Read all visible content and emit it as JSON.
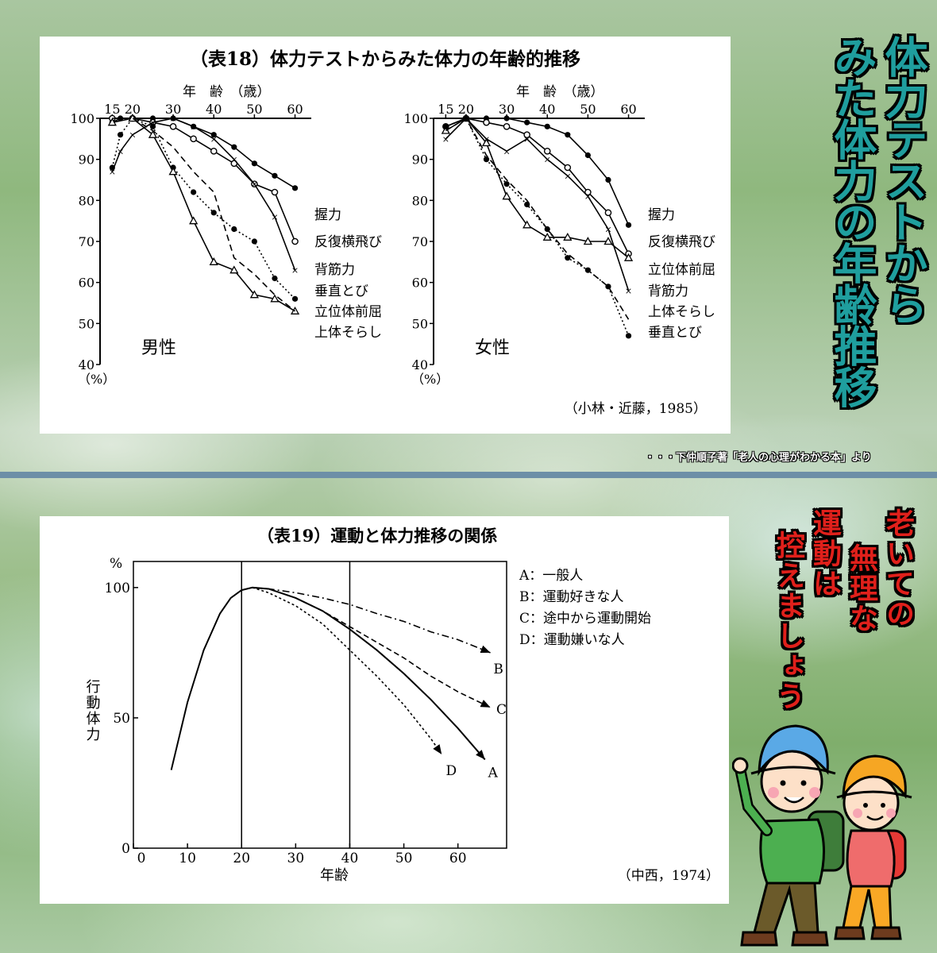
{
  "side_title": {
    "lines": [
      "体力テストから",
      "みた体力の年齢推移"
    ]
  },
  "credit": "・・・下仲順子著「老人の心理がわかる本」より",
  "slogan": {
    "lines": [
      "老いての",
      "無理な",
      "運動は",
      "控えましょう"
    ]
  },
  "colors": {
    "title_teal": "#1f9e9e",
    "slogan_red": "#e0201b",
    "divider": "#6d8fa7"
  },
  "chart_data": [
    {
      "type": "line",
      "title": "（表18）体力テストからみた体力の年齢的推移",
      "xlabel": "年　齢　（歳）",
      "x_ticks": [
        15,
        20,
        30,
        40,
        50,
        60
      ],
      "y_ticks": [
        40,
        50,
        60,
        70,
        80,
        90,
        100
      ],
      "ylabel": "（%）",
      "ylim": [
        40,
        100
      ],
      "source": "（小林・近藤，1985）",
      "panels": [
        {
          "label": "男性",
          "series": [
            {
              "name": "握力",
              "x": [
                15,
                17,
                20,
                25,
                30,
                35,
                40,
                45,
                50,
                55,
                60
              ],
              "y": [
                99,
                100,
                100,
                100,
                100,
                98,
                96,
                93,
                89,
                86,
                83
              ]
            },
            {
              "name": "反復横飛び",
              "x": [
                15,
                20,
                25,
                30,
                35,
                40,
                45,
                50,
                55,
                60
              ],
              "y": [
                100,
                100,
                99,
                98,
                95,
                92,
                89,
                84,
                82,
                70
              ]
            },
            {
              "name": "背筋力",
              "x": [
                15,
                17,
                20,
                25,
                30,
                35,
                40,
                45,
                50,
                55,
                60
              ],
              "y": [
                87,
                92,
                96,
                99,
                100,
                98,
                95,
                90,
                84,
                76,
                63
              ]
            },
            {
              "name": "垂直とび",
              "x": [
                15,
                17,
                20,
                25,
                30,
                35,
                40,
                45,
                50,
                55,
                60
              ],
              "y": [
                88,
                96,
                100,
                98,
                88,
                82,
                77,
                73,
                70,
                61,
                56
              ]
            },
            {
              "name": "立位体前屈",
              "x": [
                15,
                20,
                25,
                30,
                35,
                40,
                45,
                50,
                55,
                60
              ],
              "y": [
                99,
                100,
                96,
                87,
                75,
                65,
                63,
                57,
                56,
                53
              ]
            },
            {
              "name": "上体そらし",
              "x": [
                15,
                20,
                25,
                30,
                35,
                40,
                45,
                50,
                55,
                60
              ],
              "y": [
                100,
                100,
                97,
                93,
                87,
                82,
                66,
                62,
                57,
                53
              ]
            }
          ]
        },
        {
          "label": "女性",
          "series": [
            {
              "name": "握力",
              "x": [
                15,
                20,
                25,
                30,
                35,
                40,
                45,
                50,
                55,
                60
              ],
              "y": [
                98,
                100,
                100,
                100,
                99,
                98,
                96,
                91,
                85,
                74
              ]
            },
            {
              "name": "反復横飛び",
              "x": [
                15,
                20,
                25,
                30,
                35,
                40,
                45,
                50,
                55,
                60
              ],
              "y": [
                98,
                100,
                99,
                98,
                96,
                92,
                88,
                82,
                77,
                67
              ]
            },
            {
              "name": "立位体前屈",
              "x": [
                15,
                20,
                25,
                30,
                35,
                40,
                45,
                50,
                55,
                60
              ],
              "y": [
                97,
                100,
                94,
                81,
                74,
                71,
                71,
                70,
                70,
                66
              ]
            },
            {
              "name": "背筋力",
              "x": [
                15,
                20,
                25,
                30,
                35,
                40,
                45,
                50,
                55,
                60
              ],
              "y": [
                95,
                100,
                95,
                92,
                95,
                90,
                86,
                81,
                73,
                58
              ]
            },
            {
              "name": "上体そらし",
              "x": [
                15,
                20,
                25,
                30,
                35,
                40,
                45,
                50,
                55,
                60
              ],
              "y": [
                97,
                100,
                91,
                85,
                80,
                73,
                67,
                63,
                59,
                51
              ]
            },
            {
              "name": "垂直とび",
              "x": [
                15,
                20,
                25,
                30,
                35,
                40,
                45,
                50,
                55,
                60
              ],
              "y": [
                98,
                100,
                90,
                84,
                79,
                73,
                66,
                63,
                59,
                47
              ]
            }
          ]
        }
      ]
    },
    {
      "type": "line",
      "title": "（表19）運動と体力推移の関係",
      "xlabel": "年齢",
      "ylabel": "行動体力",
      "y_unit": "%",
      "x_ticks": [
        0,
        10,
        20,
        30,
        40,
        50,
        60
      ],
      "y_ticks": [
        0,
        50,
        100
      ],
      "xlim": [
        0,
        69
      ],
      "ylim": [
        0,
        110
      ],
      "vlines": [
        20,
        40
      ],
      "source": "（中西，1974）",
      "legend": [
        "A：一般人",
        "B：運動好きな人",
        "C：途中から運動開始",
        "D：運動嫌いな人"
      ],
      "series": [
        {
          "name": "A",
          "x": [
            7,
            10,
            13,
            16,
            18,
            20,
            22,
            25,
            30,
            35,
            40,
            45,
            50,
            55,
            60,
            65
          ],
          "y": [
            30,
            56,
            76,
            90,
            96,
            99,
            100,
            99.5,
            96,
            91,
            84,
            76,
            67,
            57,
            46,
            34
          ]
        },
        {
          "name": "B",
          "x": [
            22,
            25,
            30,
            35,
            40,
            45,
            50,
            55,
            60,
            66
          ],
          "y": [
            100,
            99.5,
            98,
            96,
            93.5,
            90,
            87,
            83,
            80,
            75
          ]
        },
        {
          "name": "C",
          "x": [
            22,
            25,
            30,
            35,
            40,
            45,
            50,
            55,
            60,
            66
          ],
          "y": [
            100,
            99.5,
            96,
            91,
            85,
            79,
            73,
            66,
            60,
            54
          ]
        },
        {
          "name": "D",
          "x": [
            22,
            25,
            30,
            35,
            40,
            45,
            50,
            55,
            57
          ],
          "y": [
            100,
            98,
            93,
            86,
            76,
            66,
            55,
            42,
            36
          ]
        }
      ]
    }
  ]
}
